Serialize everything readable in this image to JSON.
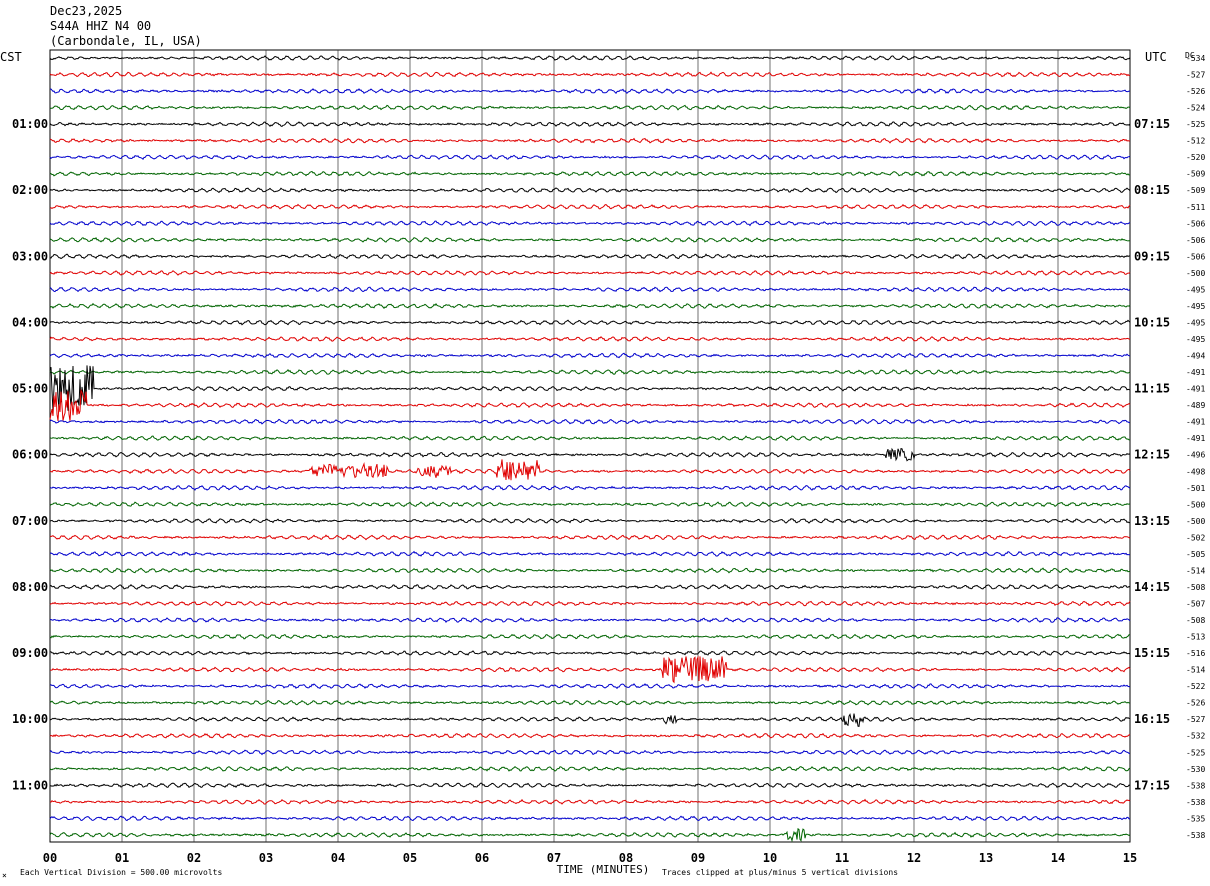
{
  "header": {
    "date": "Dec23,2025",
    "station": "S44A HHZ N4 00",
    "location": "(Carbondale, IL, USA)"
  },
  "left_timezone": "CST",
  "right_timezone": "UTC",
  "dc_label": "DC",
  "footer": {
    "scale": "Each Vertical Division =  500.00 microvolts",
    "xlabel": "TIME (MINUTES)",
    "clip_note": "Traces clipped at plus/minus 5 vertical divisions",
    "corner_mark": "×"
  },
  "colors": {
    "traces": [
      "#000000",
      "#e00000",
      "#0000cc",
      "#006400"
    ],
    "grid": "#000000",
    "text": "#000000"
  },
  "chart_data": {
    "type": "line",
    "x_label": "TIME (MINUTES)",
    "x_ticks": [
      "00",
      "01",
      "02",
      "03",
      "04",
      "05",
      "06",
      "07",
      "08",
      "09",
      "10",
      "11",
      "12",
      "13",
      "14",
      "15"
    ],
    "xlim": [
      0,
      15
    ],
    "left_hour_labels": [
      "01:00",
      "02:00",
      "03:00",
      "04:00",
      "05:00",
      "06:00",
      "07:00",
      "08:00",
      "09:00",
      "10:00",
      "11:00"
    ],
    "right_hour_labels": [
      "07:15",
      "08:15",
      "09:15",
      "10:15",
      "11:15",
      "12:15",
      "13:15",
      "14:15",
      "15:15",
      "16:15",
      "17:15"
    ],
    "dc_offsets": [
      "-534",
      "-527",
      "-526",
      "-524",
      "-525",
      "-512",
      "-520",
      "-509",
      "-509",
      "-511",
      "-506",
      "-506",
      "-506",
      "-500",
      "-495",
      "-495",
      "-495",
      "-495",
      "-494",
      "-491",
      "-491",
      "-489",
      "-491",
      "-491",
      "-496",
      "-498",
      "-501",
      "-500",
      "-500",
      "-502",
      "-505",
      "-514",
      "-508",
      "-507",
      "-508",
      "-513",
      "-516",
      "-514",
      "-522",
      "-526",
      "-527",
      "-532",
      "-525",
      "-530",
      "-538",
      "-538",
      "-535",
      "-538"
    ],
    "traces_count": 48,
    "events": [
      {
        "trace": 20,
        "start_min": 0.0,
        "end_min": 0.6,
        "amp": 3.2
      },
      {
        "trace": 21,
        "start_min": 0.0,
        "end_min": 0.5,
        "amp": 2.2
      },
      {
        "trace": 25,
        "start_min": 3.6,
        "end_min": 4.7,
        "amp": 0.9
      },
      {
        "trace": 25,
        "start_min": 5.1,
        "end_min": 5.6,
        "amp": 0.8
      },
      {
        "trace": 25,
        "start_min": 6.2,
        "end_min": 6.8,
        "amp": 1.4
      },
      {
        "trace": 24,
        "start_min": 11.6,
        "end_min": 12.0,
        "amp": 0.8
      },
      {
        "trace": 37,
        "start_min": 8.5,
        "end_min": 9.4,
        "amp": 1.8
      },
      {
        "trace": 40,
        "start_min": 8.5,
        "end_min": 8.7,
        "amp": 0.6
      },
      {
        "trace": 40,
        "start_min": 11.0,
        "end_min": 11.3,
        "amp": 0.7
      },
      {
        "trace": 47,
        "start_min": 10.2,
        "end_min": 10.5,
        "amp": 0.8
      }
    ]
  }
}
